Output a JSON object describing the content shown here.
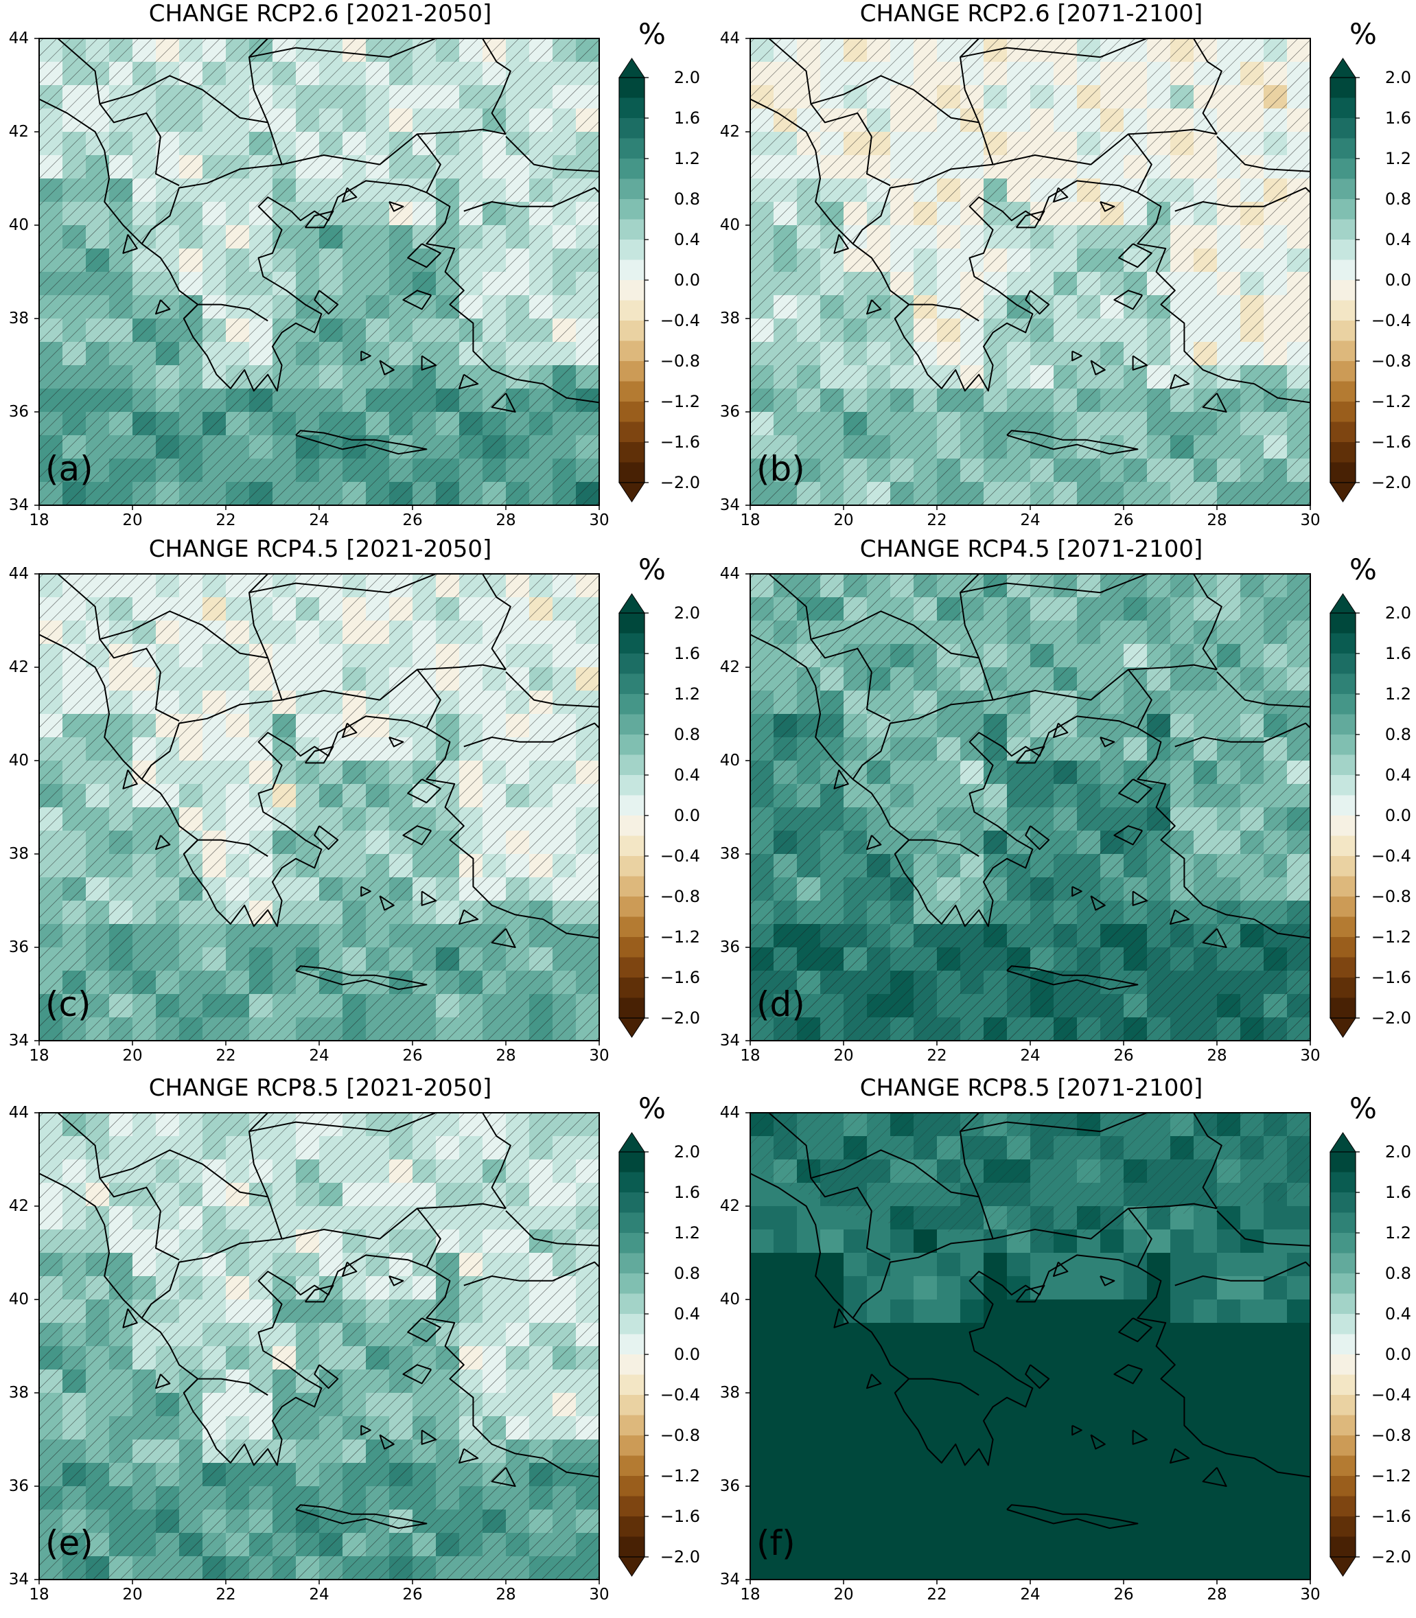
{
  "figure": {
    "panels": [
      {
        "title": "CHANGE RCP2.6 [2021-2050]",
        "label": "(a)",
        "level": 0.75
      },
      {
        "title": "CHANGE RCP2.6 [2071-2100]",
        "label": "(b)",
        "level": 0.45
      },
      {
        "title": "CHANGE RCP4.5 [2021-2050]",
        "label": "(c)",
        "level": 0.6
      },
      {
        "title": "CHANGE RCP4.5 [2071-2100]",
        "label": "(d)",
        "level": 1.2
      },
      {
        "title": "CHANGE RCP8.5 [2021-2050]",
        "label": "(e)",
        "level": 0.75
      },
      {
        "title": "CHANGE RCP8.5 [2071-2100]",
        "label": "(f)",
        "level": 2.1
      }
    ],
    "y_ticks": [
      "44",
      "42",
      "40",
      "38",
      "36",
      "34"
    ],
    "x_ticks": [
      "18",
      "20",
      "22",
      "24",
      "26",
      "28",
      "30"
    ],
    "colorbar": {
      "unit": "%",
      "ticks": [
        "2.0",
        "1.6",
        "1.2",
        "0.8",
        "0.4",
        "0.0",
        "−0.4",
        "−0.8",
        "−1.2",
        "−1.6",
        "−2.0"
      ],
      "colors_top_to_bottom": [
        "#00483c",
        "#0a5c51",
        "#1c6e64",
        "#2f8276",
        "#459688",
        "#62aa9c",
        "#80bfb1",
        "#a3d3c8",
        "#c6e6df",
        "#e6f3f0",
        "#f6f1e3",
        "#f3e6c5",
        "#ead2a2",
        "#ddb87c",
        "#cc9b56",
        "#b47b32",
        "#9a5e1c",
        "#7e4511",
        "#603008",
        "#482104"
      ]
    }
  },
  "chart_data": {
    "type": "heatmap",
    "description_unit": "%",
    "x_range": [
      18,
      30
    ],
    "y_range": [
      34,
      44
    ],
    "color_range": [
      -2.0,
      2.0
    ],
    "panels": [
      {
        "title": "CHANGE RCP2.6 [2021-2050]",
        "approx_value": 0.75
      },
      {
        "title": "CHANGE RCP2.6 [2071-2100]",
        "approx_value": 0.45
      },
      {
        "title": "CHANGE RCP4.5 [2021-2050]",
        "approx_value": 0.6
      },
      {
        "title": "CHANGE RCP4.5 [2071-2100]",
        "approx_value": 1.2
      },
      {
        "title": "CHANGE RCP8.5 [2021-2050]",
        "approx_value": 0.75
      },
      {
        "title": "CHANGE RCP8.5 [2071-2100]",
        "approx_value": 2.1
      }
    ]
  }
}
